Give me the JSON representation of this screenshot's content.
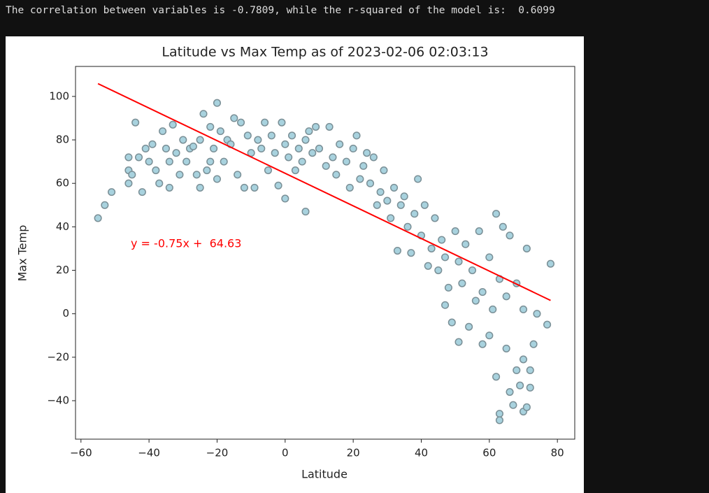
{
  "output_text": "The correlation between variables is -0.7809, while the r-squared of the model is:  0.6099",
  "chart_data": {
    "type": "scatter",
    "title": "Latitude vs Max Temp as of 2023-02-06 02:03:13",
    "x_label": "Latitude",
    "y_label": "Max Temp",
    "xlim": [
      -61.6,
      85.1
    ],
    "ylim": [
      -57.7,
      113.8
    ],
    "xticks": [
      {
        "value": -60,
        "label": "−60"
      },
      {
        "value": -40,
        "label": "−40"
      },
      {
        "value": -20,
        "label": "−20"
      },
      0,
      20,
      40,
      60,
      80
    ],
    "yticks": [
      {
        "value": -40,
        "label": "−40"
      },
      {
        "value": -20,
        "label": "−20"
      },
      0,
      20,
      40,
      60,
      80,
      100
    ],
    "annotation": {
      "text": "y = -0.75x +  64.63",
      "color": "#ff0000"
    },
    "series": [
      {
        "type": "scatter",
        "color": "#a8d2de",
        "edgecolor": "#7a8f96",
        "x": [
          -55,
          -53,
          -51,
          -46,
          -46,
          -45,
          -46,
          -44,
          -43,
          -42,
          -41,
          -40,
          -39,
          -38,
          -37,
          -36,
          -35,
          -34,
          -34,
          -33,
          -32,
          -31,
          -30,
          -29,
          -28,
          -27,
          -26,
          -25,
          -25,
          -24,
          -23,
          -22,
          -22,
          -21,
          -20,
          -20,
          -19,
          -18,
          -17,
          -16,
          -15,
          -14,
          -13,
          -12,
          -11,
          -10,
          -9,
          -8,
          -7,
          -6,
          -5,
          -4,
          -3,
          -2,
          -1,
          0,
          0,
          1,
          2,
          3,
          4,
          5,
          6,
          6,
          7,
          8,
          9,
          10,
          12,
          13,
          14,
          15,
          16,
          18,
          19,
          20,
          21,
          22,
          23,
          24,
          25,
          26,
          27,
          28,
          29,
          30,
          31,
          32,
          33,
          34,
          35,
          36,
          37,
          38,
          39,
          40,
          41,
          42,
          43,
          44,
          45,
          46,
          47,
          47,
          48,
          49,
          50,
          51,
          51,
          52,
          53,
          54,
          55,
          56,
          57,
          58,
          58,
          60,
          60,
          61,
          62,
          62,
          63,
          63,
          63,
          64,
          65,
          65,
          66,
          66,
          67,
          68,
          68,
          69,
          70,
          70,
          70,
          71,
          71,
          72,
          72,
          73,
          74,
          77,
          78
        ],
        "values": [
          44,
          50,
          56,
          60,
          66,
          64,
          72,
          88,
          72,
          56,
          76,
          70,
          78,
          66,
          60,
          84,
          76,
          58,
          70,
          87,
          74,
          64,
          80,
          70,
          76,
          77,
          64,
          58,
          80,
          92,
          66,
          70,
          86,
          76,
          97,
          62,
          84,
          70,
          80,
          78,
          90,
          64,
          88,
          58,
          82,
          74,
          58,
          80,
          76,
          88,
          66,
          82,
          74,
          59,
          88,
          53,
          78,
          72,
          82,
          66,
          76,
          70,
          47,
          80,
          84,
          74,
          86,
          76,
          68,
          86,
          72,
          64,
          78,
          70,
          58,
          76,
          82,
          62,
          68,
          74,
          60,
          72,
          50,
          56,
          66,
          52,
          44,
          58,
          29,
          50,
          54,
          40,
          28,
          46,
          62,
          36,
          50,
          22,
          30,
          44,
          20,
          34,
          4,
          26,
          12,
          -4,
          38,
          -13,
          24,
          14,
          32,
          -6,
          20,
          6,
          38,
          -14,
          10,
          -10,
          26,
          2,
          46,
          -29,
          -46,
          -49,
          16,
          40,
          -16,
          8,
          -36,
          36,
          -42,
          14,
          -26,
          -33,
          2,
          -45,
          -21,
          30,
          -43,
          -34,
          -26,
          -14,
          0,
          -5,
          23
        ]
      },
      {
        "type": "line",
        "color": "#ff0000",
        "x": [
          -55,
          78
        ],
        "values": [
          105.88,
          6.13
        ]
      }
    ]
  }
}
